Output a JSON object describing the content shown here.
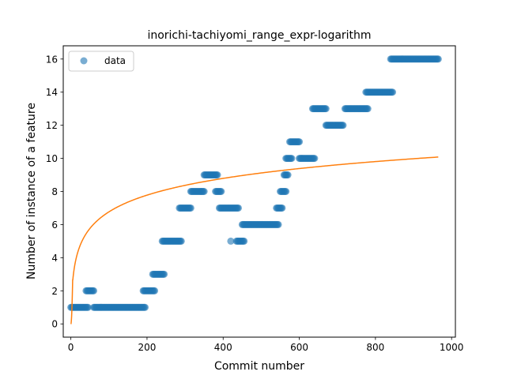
{
  "chart_data": {
    "type": "scatter",
    "title": "inorichi-tachiyomi_range_expr-logarithm",
    "xlabel": "Commit number",
    "ylabel": "Number of instance of a feature",
    "xlim": [
      -20,
      1010
    ],
    "ylim": [
      -0.8,
      16.8
    ],
    "xticks": [
      0,
      200,
      400,
      600,
      800,
      1000
    ],
    "yticks": [
      0,
      2,
      4,
      6,
      8,
      10,
      12,
      14,
      16
    ],
    "grid": false,
    "legend": {
      "placement": "top-left",
      "entries": [
        "data"
      ]
    },
    "colors": {
      "data": "#1f77b4",
      "fit": "#ff7f0e"
    },
    "series": [
      {
        "name": "data",
        "kind": "scatter",
        "segments": [
          {
            "x_start": 0,
            "x_end": 45,
            "y": 1
          },
          {
            "x_start": 40,
            "x_end": 60,
            "y": 2
          },
          {
            "x_start": 60,
            "x_end": 195,
            "y": 1
          },
          {
            "x_start": 190,
            "x_end": 220,
            "y": 2
          },
          {
            "x_start": 215,
            "x_end": 245,
            "y": 3
          },
          {
            "x_start": 240,
            "x_end": 290,
            "y": 5
          },
          {
            "x_start": 285,
            "x_end": 315,
            "y": 7
          },
          {
            "x_start": 315,
            "x_end": 350,
            "y": 8
          },
          {
            "x_start": 350,
            "x_end": 385,
            "y": 9
          },
          {
            "x_start": 380,
            "x_end": 395,
            "y": 8
          },
          {
            "x_start": 390,
            "x_end": 440,
            "y": 7
          },
          {
            "x_start": 420,
            "x_end": 420,
            "y": 5
          },
          {
            "x_start": 435,
            "x_end": 455,
            "y": 5
          },
          {
            "x_start": 450,
            "x_end": 545,
            "y": 6
          },
          {
            "x_start": 540,
            "x_end": 555,
            "y": 7
          },
          {
            "x_start": 550,
            "x_end": 565,
            "y": 8
          },
          {
            "x_start": 560,
            "x_end": 570,
            "y": 9
          },
          {
            "x_start": 565,
            "x_end": 580,
            "y": 10
          },
          {
            "x_start": 575,
            "x_end": 600,
            "y": 11
          },
          {
            "x_start": 600,
            "x_end": 640,
            "y": 10
          },
          {
            "x_start": 635,
            "x_end": 670,
            "y": 13
          },
          {
            "x_start": 670,
            "x_end": 715,
            "y": 12
          },
          {
            "x_start": 720,
            "x_end": 780,
            "y": 13
          },
          {
            "x_start": 775,
            "x_end": 845,
            "y": 14
          },
          {
            "x_start": 840,
            "x_end": 965,
            "y": 16
          }
        ]
      },
      {
        "name": "",
        "kind": "line",
        "model": "logarithmic",
        "x_range": [
          0,
          965
        ],
        "points": [
          [
            0,
            0
          ],
          [
            5,
            3.0
          ],
          [
            20,
            4.6
          ],
          [
            50,
            5.6
          ],
          [
            100,
            6.6
          ],
          [
            200,
            7.7
          ],
          [
            300,
            8.4
          ],
          [
            400,
            8.8
          ],
          [
            500,
            9.2
          ],
          [
            600,
            9.4
          ],
          [
            700,
            9.7
          ],
          [
            800,
            9.9
          ],
          [
            965,
            10.1
          ]
        ]
      }
    ]
  }
}
